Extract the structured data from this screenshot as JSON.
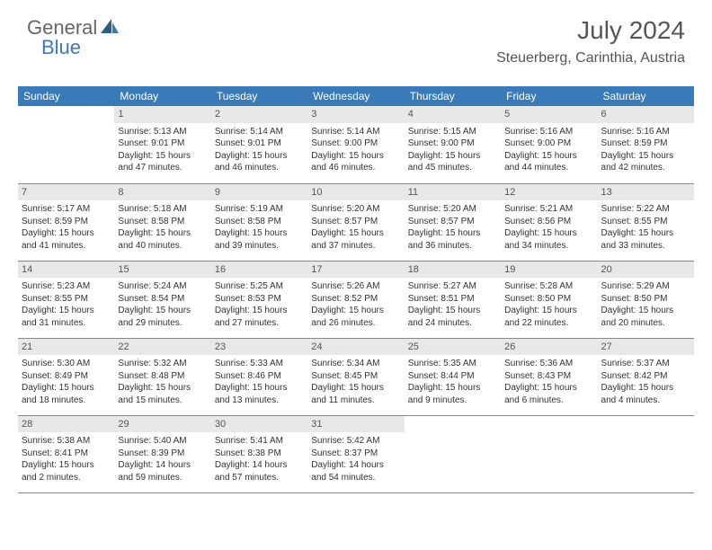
{
  "logo": {
    "part1": "General",
    "part2": "Blue"
  },
  "header": {
    "title": "July 2024",
    "location": "Steuerberg, Carinthia, Austria"
  },
  "colors": {
    "brand": "#3a7ab8",
    "daynum_bg": "#e8e8e8",
    "text": "#333333",
    "header_text": "#ffffff"
  },
  "weekdays": [
    "Sunday",
    "Monday",
    "Tuesday",
    "Wednesday",
    "Thursday",
    "Friday",
    "Saturday"
  ],
  "weeks": [
    [
      null,
      {
        "n": "1",
        "sr": "Sunrise: 5:13 AM",
        "ss": "Sunset: 9:01 PM",
        "d1": "Daylight: 15 hours",
        "d2": "and 47 minutes."
      },
      {
        "n": "2",
        "sr": "Sunrise: 5:14 AM",
        "ss": "Sunset: 9:01 PM",
        "d1": "Daylight: 15 hours",
        "d2": "and 46 minutes."
      },
      {
        "n": "3",
        "sr": "Sunrise: 5:14 AM",
        "ss": "Sunset: 9:00 PM",
        "d1": "Daylight: 15 hours",
        "d2": "and 46 minutes."
      },
      {
        "n": "4",
        "sr": "Sunrise: 5:15 AM",
        "ss": "Sunset: 9:00 PM",
        "d1": "Daylight: 15 hours",
        "d2": "and 45 minutes."
      },
      {
        "n": "5",
        "sr": "Sunrise: 5:16 AM",
        "ss": "Sunset: 9:00 PM",
        "d1": "Daylight: 15 hours",
        "d2": "and 44 minutes."
      },
      {
        "n": "6",
        "sr": "Sunrise: 5:16 AM",
        "ss": "Sunset: 8:59 PM",
        "d1": "Daylight: 15 hours",
        "d2": "and 42 minutes."
      }
    ],
    [
      {
        "n": "7",
        "sr": "Sunrise: 5:17 AM",
        "ss": "Sunset: 8:59 PM",
        "d1": "Daylight: 15 hours",
        "d2": "and 41 minutes."
      },
      {
        "n": "8",
        "sr": "Sunrise: 5:18 AM",
        "ss": "Sunset: 8:58 PM",
        "d1": "Daylight: 15 hours",
        "d2": "and 40 minutes."
      },
      {
        "n": "9",
        "sr": "Sunrise: 5:19 AM",
        "ss": "Sunset: 8:58 PM",
        "d1": "Daylight: 15 hours",
        "d2": "and 39 minutes."
      },
      {
        "n": "10",
        "sr": "Sunrise: 5:20 AM",
        "ss": "Sunset: 8:57 PM",
        "d1": "Daylight: 15 hours",
        "d2": "and 37 minutes."
      },
      {
        "n": "11",
        "sr": "Sunrise: 5:20 AM",
        "ss": "Sunset: 8:57 PM",
        "d1": "Daylight: 15 hours",
        "d2": "and 36 minutes."
      },
      {
        "n": "12",
        "sr": "Sunrise: 5:21 AM",
        "ss": "Sunset: 8:56 PM",
        "d1": "Daylight: 15 hours",
        "d2": "and 34 minutes."
      },
      {
        "n": "13",
        "sr": "Sunrise: 5:22 AM",
        "ss": "Sunset: 8:55 PM",
        "d1": "Daylight: 15 hours",
        "d2": "and 33 minutes."
      }
    ],
    [
      {
        "n": "14",
        "sr": "Sunrise: 5:23 AM",
        "ss": "Sunset: 8:55 PM",
        "d1": "Daylight: 15 hours",
        "d2": "and 31 minutes."
      },
      {
        "n": "15",
        "sr": "Sunrise: 5:24 AM",
        "ss": "Sunset: 8:54 PM",
        "d1": "Daylight: 15 hours",
        "d2": "and 29 minutes."
      },
      {
        "n": "16",
        "sr": "Sunrise: 5:25 AM",
        "ss": "Sunset: 8:53 PM",
        "d1": "Daylight: 15 hours",
        "d2": "and 27 minutes."
      },
      {
        "n": "17",
        "sr": "Sunrise: 5:26 AM",
        "ss": "Sunset: 8:52 PM",
        "d1": "Daylight: 15 hours",
        "d2": "and 26 minutes."
      },
      {
        "n": "18",
        "sr": "Sunrise: 5:27 AM",
        "ss": "Sunset: 8:51 PM",
        "d1": "Daylight: 15 hours",
        "d2": "and 24 minutes."
      },
      {
        "n": "19",
        "sr": "Sunrise: 5:28 AM",
        "ss": "Sunset: 8:50 PM",
        "d1": "Daylight: 15 hours",
        "d2": "and 22 minutes."
      },
      {
        "n": "20",
        "sr": "Sunrise: 5:29 AM",
        "ss": "Sunset: 8:50 PM",
        "d1": "Daylight: 15 hours",
        "d2": "and 20 minutes."
      }
    ],
    [
      {
        "n": "21",
        "sr": "Sunrise: 5:30 AM",
        "ss": "Sunset: 8:49 PM",
        "d1": "Daylight: 15 hours",
        "d2": "and 18 minutes."
      },
      {
        "n": "22",
        "sr": "Sunrise: 5:32 AM",
        "ss": "Sunset: 8:48 PM",
        "d1": "Daylight: 15 hours",
        "d2": "and 15 minutes."
      },
      {
        "n": "23",
        "sr": "Sunrise: 5:33 AM",
        "ss": "Sunset: 8:46 PM",
        "d1": "Daylight: 15 hours",
        "d2": "and 13 minutes."
      },
      {
        "n": "24",
        "sr": "Sunrise: 5:34 AM",
        "ss": "Sunset: 8:45 PM",
        "d1": "Daylight: 15 hours",
        "d2": "and 11 minutes."
      },
      {
        "n": "25",
        "sr": "Sunrise: 5:35 AM",
        "ss": "Sunset: 8:44 PM",
        "d1": "Daylight: 15 hours",
        "d2": "and 9 minutes."
      },
      {
        "n": "26",
        "sr": "Sunrise: 5:36 AM",
        "ss": "Sunset: 8:43 PM",
        "d1": "Daylight: 15 hours",
        "d2": "and 6 minutes."
      },
      {
        "n": "27",
        "sr": "Sunrise: 5:37 AM",
        "ss": "Sunset: 8:42 PM",
        "d1": "Daylight: 15 hours",
        "d2": "and 4 minutes."
      }
    ],
    [
      {
        "n": "28",
        "sr": "Sunrise: 5:38 AM",
        "ss": "Sunset: 8:41 PM",
        "d1": "Daylight: 15 hours",
        "d2": "and 2 minutes."
      },
      {
        "n": "29",
        "sr": "Sunrise: 5:40 AM",
        "ss": "Sunset: 8:39 PM",
        "d1": "Daylight: 14 hours",
        "d2": "and 59 minutes."
      },
      {
        "n": "30",
        "sr": "Sunrise: 5:41 AM",
        "ss": "Sunset: 8:38 PM",
        "d1": "Daylight: 14 hours",
        "d2": "and 57 minutes."
      },
      {
        "n": "31",
        "sr": "Sunrise: 5:42 AM",
        "ss": "Sunset: 8:37 PM",
        "d1": "Daylight: 14 hours",
        "d2": "and 54 minutes."
      },
      null,
      null,
      null
    ]
  ]
}
